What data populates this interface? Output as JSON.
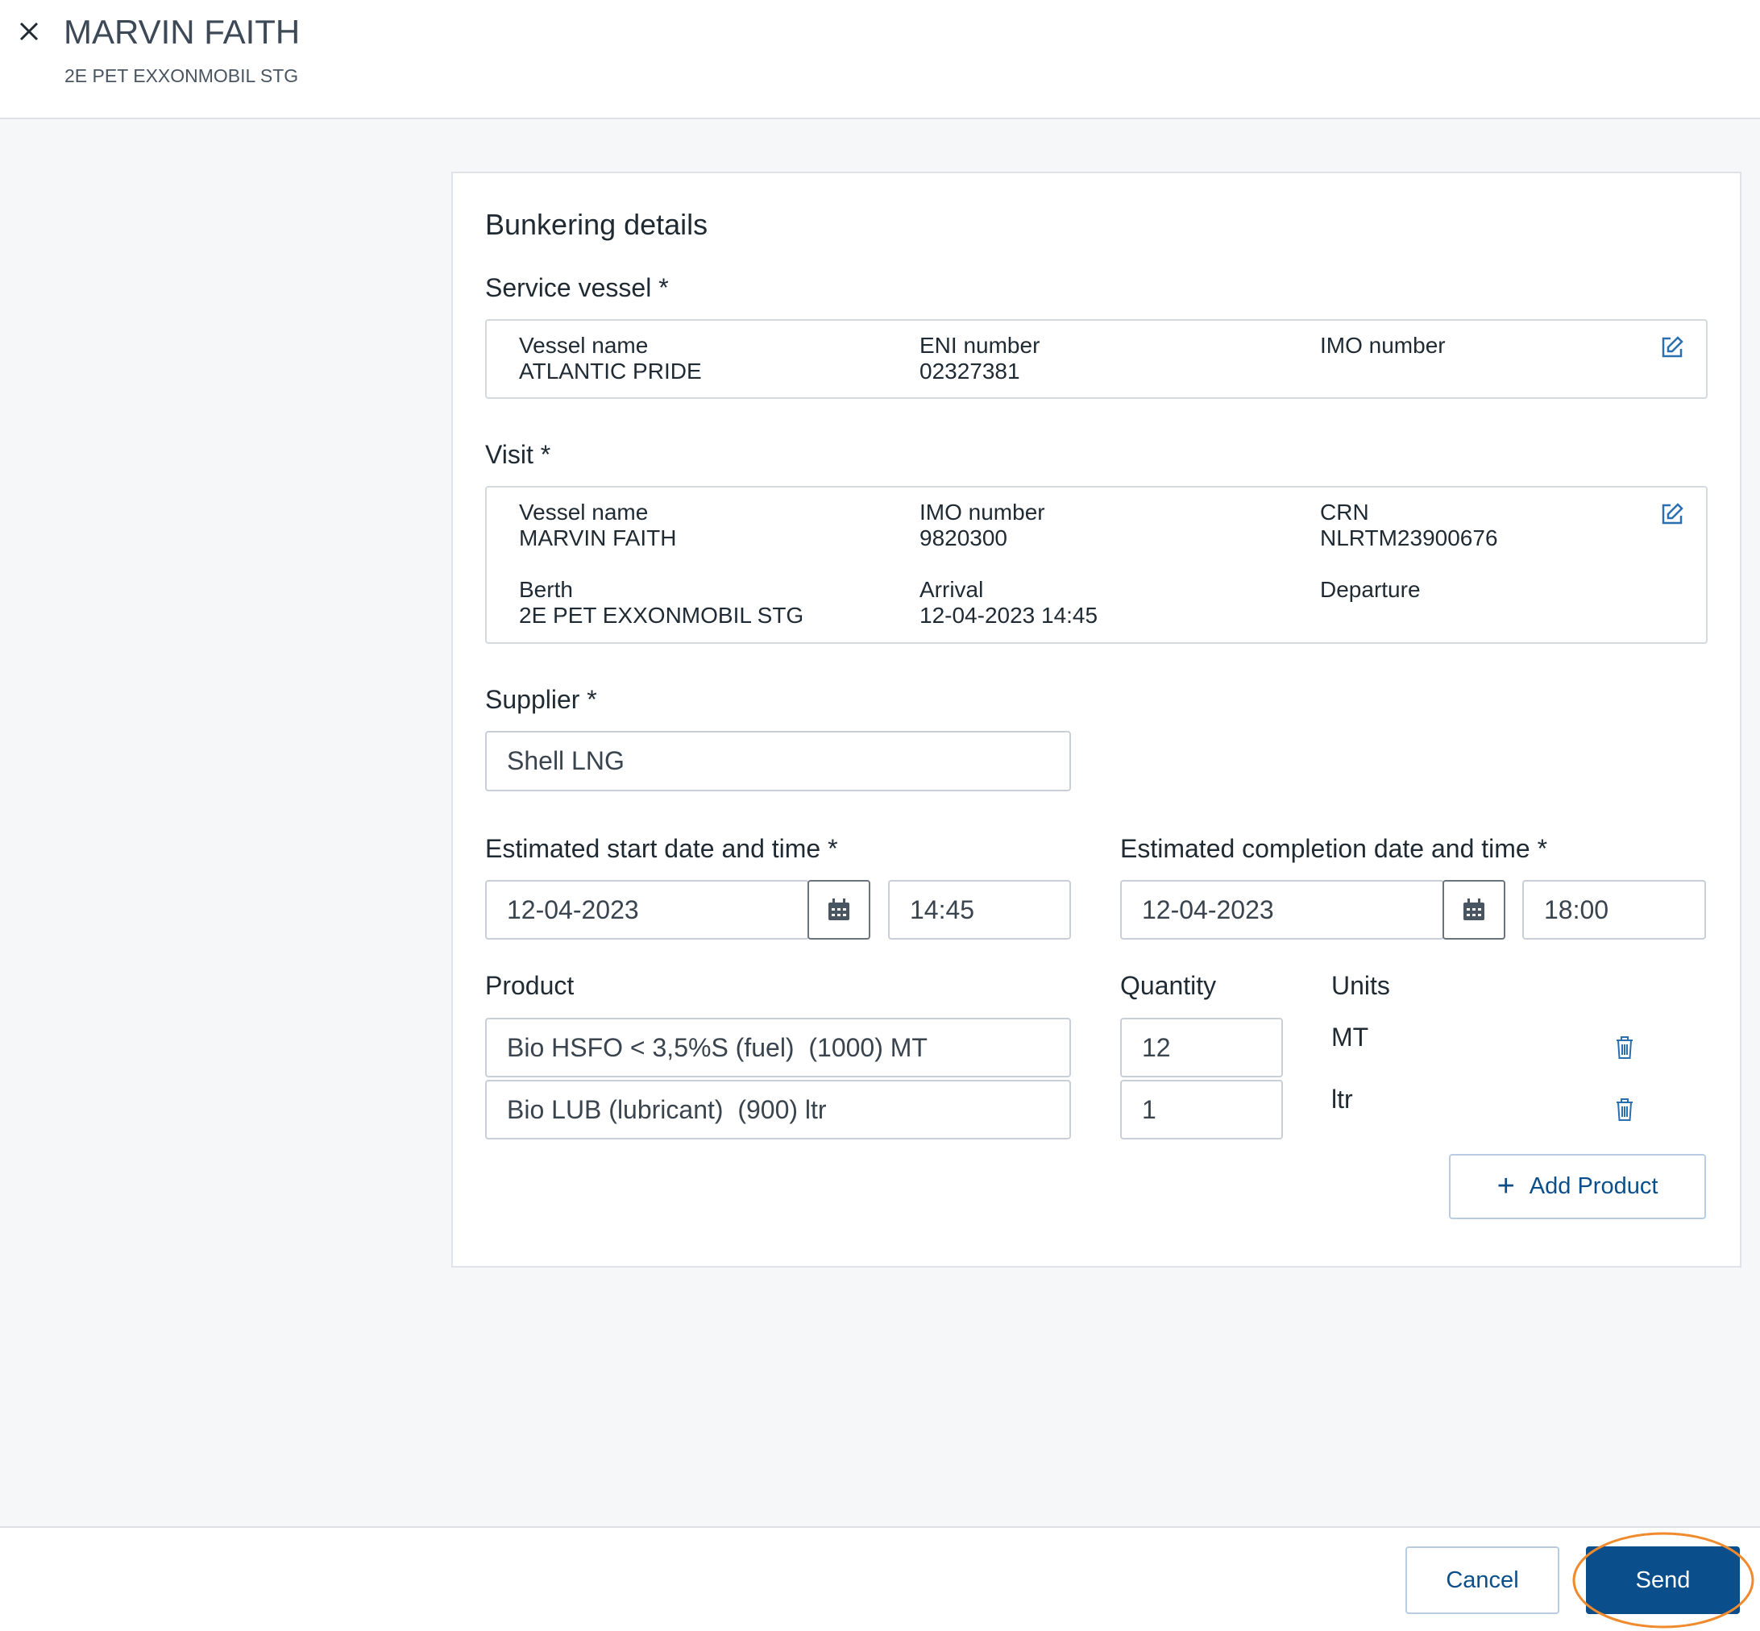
{
  "header": {
    "title": "MARVIN FAITH",
    "subtitle": "2E PET EXXONMOBIL STG"
  },
  "card": {
    "title": "Bunkering details",
    "service_vessel": {
      "label": "Service vessel *",
      "fields": [
        {
          "label": "Vessel name",
          "value": "ATLANTIC PRIDE"
        },
        {
          "label": "ENI number",
          "value": "02327381"
        },
        {
          "label": "IMO number"
        }
      ]
    },
    "visit": {
      "label": "Visit *",
      "fields": [
        {
          "label": "Vessel name",
          "value": "MARVIN FAITH"
        },
        {
          "label": "IMO number",
          "value": "9820300"
        },
        {
          "label": "CRN",
          "value": "NLRTM23900676"
        },
        {
          "label": "Berth",
          "value": "2E PET EXXONMOBIL STG"
        },
        {
          "label": "Arrival",
          "value": "12-04-2023 14:45"
        },
        {
          "label": "Departure"
        }
      ]
    },
    "supplier": {
      "label": "Supplier *",
      "value": "Shell LNG"
    },
    "start": {
      "label": "Estimated start date and time *",
      "date": "12-04-2023",
      "time": "14:45"
    },
    "completion": {
      "label": "Estimated completion date and time *",
      "date": "12-04-2023",
      "time": "18:00"
    },
    "products": {
      "product_label": "Product",
      "quantity_label": "Quantity",
      "units_label": "Units",
      "rows": [
        {
          "product": "Bio HSFO < 3,5%S (fuel)  (1000) MT",
          "quantity": "12",
          "unit": "MT"
        },
        {
          "product": "Bio LUB (lubricant)  (900) ltr",
          "quantity": "1",
          "unit": "ltr"
        }
      ]
    },
    "add_button": "Add Product"
  },
  "footer": {
    "cancel": "Cancel",
    "send": "Send"
  }
}
